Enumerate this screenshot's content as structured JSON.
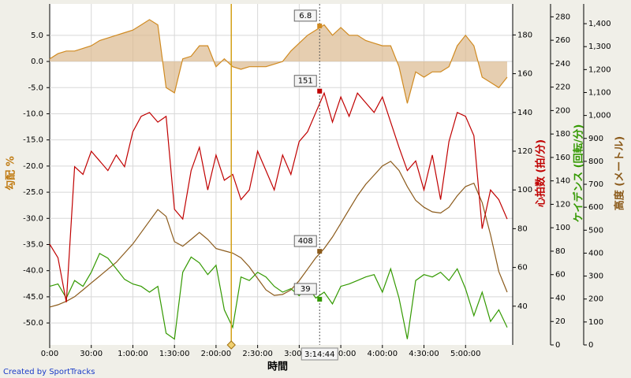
{
  "chart_data": {
    "type": "line",
    "x_label": "時間",
    "footer": "Created by SportTracks",
    "grid": true,
    "x": [
      0,
      6,
      12,
      18,
      24,
      30,
      36,
      42,
      48,
      54,
      60,
      66,
      72,
      78,
      84,
      90,
      96,
      102,
      108,
      114,
      120,
      126,
      132,
      138,
      144,
      150,
      156,
      162,
      168,
      174,
      180,
      186,
      192,
      198,
      204,
      210,
      216,
      222,
      228,
      234,
      240,
      246,
      252,
      258,
      264,
      270,
      276,
      282,
      288,
      294,
      300,
      306,
      312,
      318,
      324,
      330
    ],
    "xlim": [
      0,
      334
    ],
    "xticks": [
      {
        "value": 0,
        "label": "0:00"
      },
      {
        "value": 30,
        "label": "30:00"
      },
      {
        "value": 60,
        "label": "1:00:00"
      },
      {
        "value": 90,
        "label": "1:30:00"
      },
      {
        "value": 120,
        "label": "2:00:00"
      },
      {
        "value": 150,
        "label": "2:30:00"
      },
      {
        "value": 180,
        "label": "3:00:00"
      },
      {
        "value": 210,
        "label": "3:30:00"
      },
      {
        "value": 240,
        "label": "4:00:00"
      },
      {
        "value": 270,
        "label": "4:30:00"
      },
      {
        "value": 300,
        "label": "5:00:00"
      }
    ],
    "axes": [
      {
        "label": "勾配 %",
        "color": "#c07a10",
        "ylim": [
          -54.2,
          11
        ],
        "yticks": [
          {
            "value": 5,
            "label": "5.0"
          },
          {
            "value": 0,
            "label": "0.0"
          },
          {
            "value": -5,
            "label": "-5.0"
          },
          {
            "value": -10,
            "label": "-10.0"
          },
          {
            "value": -15,
            "label": "-15.0"
          },
          {
            "value": -20,
            "label": "-20.0"
          },
          {
            "value": -25,
            "label": "-25.0"
          },
          {
            "value": -30,
            "label": "-30.0"
          },
          {
            "value": -35,
            "label": "-35.0"
          },
          {
            "value": -40,
            "label": "-40.0"
          },
          {
            "value": -45,
            "label": "-45.0"
          },
          {
            "value": -50,
            "label": "-50.0"
          }
        ]
      },
      {
        "label": "心拍数 (拍/分)",
        "color": "#c00000",
        "ylim": [
          20,
          196
        ],
        "yticks": [
          40,
          60,
          80,
          100,
          120,
          140,
          160,
          180
        ]
      },
      {
        "label": "ケイデンス (回転/分)",
        "color": "#339900",
        "ylim": [
          0,
          291
        ],
        "yticks": [
          0,
          20,
          40,
          60,
          80,
          100,
          120,
          140,
          160,
          180,
          200,
          220,
          240,
          260,
          280
        ]
      },
      {
        "label": "高度 (メートル)",
        "color": "#8b5a1a",
        "ylim": [
          0,
          1486
        ],
        "yticks": [
          0,
          100,
          200,
          300,
          400,
          500,
          600,
          700,
          800,
          900,
          {
            "value": 1000,
            "label": "1,000"
          },
          {
            "value": 1100,
            "label": "1,100"
          },
          {
            "value": 1200,
            "label": "1,200"
          },
          {
            "value": 1300,
            "label": "1,300"
          },
          {
            "value": 1400,
            "label": "1,400"
          }
        ]
      }
    ],
    "series": [
      {
        "axis": 0,
        "color": "#d08a20",
        "fill": "#dcb98f",
        "values": [
          0.5,
          1.5,
          2,
          2,
          2.5,
          3,
          4,
          4.5,
          5,
          5.5,
          6,
          7,
          8,
          7,
          -5,
          -6,
          0.5,
          1,
          3,
          3,
          -1,
          0.5,
          -1,
          -1.5,
          -1,
          -1,
          -1,
          -0.5,
          0,
          2,
          3.5,
          5,
          6,
          7,
          5,
          6.5,
          5,
          5,
          4,
          3.5,
          3,
          3,
          -1,
          -8,
          -2,
          -3,
          -2,
          -2,
          -1,
          3,
          5,
          3,
          -3,
          -4,
          -5,
          -3
        ]
      },
      {
        "axis": 1,
        "color": "#c00000",
        "values": [
          72,
          65,
          42,
          112,
          108,
          120,
          115,
          110,
          118,
          112,
          130,
          138,
          140,
          135,
          138,
          90,
          85,
          110,
          122,
          100,
          118,
          105,
          108,
          95,
          100,
          120,
          110,
          100,
          118,
          108,
          125,
          130,
          140,
          150,
          135,
          148,
          138,
          150,
          145,
          140,
          148,
          135,
          122,
          110,
          115,
          100,
          118,
          95,
          125,
          140,
          138,
          128,
          80,
          100,
          95,
          85
        ]
      },
      {
        "axis": 2,
        "color": "#339900",
        "values": [
          50,
          52,
          40,
          55,
          50,
          62,
          78,
          74,
          65,
          56,
          52,
          50,
          45,
          50,
          10,
          5,
          62,
          75,
          70,
          60,
          68,
          30,
          15,
          58,
          55,
          62,
          58,
          50,
          45,
          48,
          42,
          50,
          40,
          45,
          35,
          50,
          52,
          55,
          58,
          60,
          45,
          65,
          40,
          5,
          55,
          60,
          58,
          62,
          55,
          65,
          48,
          25,
          45,
          20,
          30,
          15
        ]
      },
      {
        "axis": 3,
        "color": "#8b5a1a",
        "values": [
          165,
          175,
          190,
          210,
          240,
          270,
          300,
          330,
          360,
          400,
          440,
          490,
          540,
          590,
          560,
          450,
          430,
          460,
          490,
          460,
          420,
          410,
          400,
          380,
          340,
          290,
          240,
          216,
          220,
          240,
          280,
          330,
          380,
          420,
          470,
          530,
          590,
          650,
          700,
          740,
          780,
          800,
          760,
          690,
          630,
          600,
          580,
          575,
          600,
          650,
          690,
          705,
          620,
          480,
          320,
          230
        ]
      }
    ],
    "cursor": {
      "x": {
        "value": 194.73,
        "label": "3:14:44"
      },
      "values": [
        6.8,
        151,
        39,
        408
      ]
    },
    "lap_markers": [
      131
    ]
  }
}
